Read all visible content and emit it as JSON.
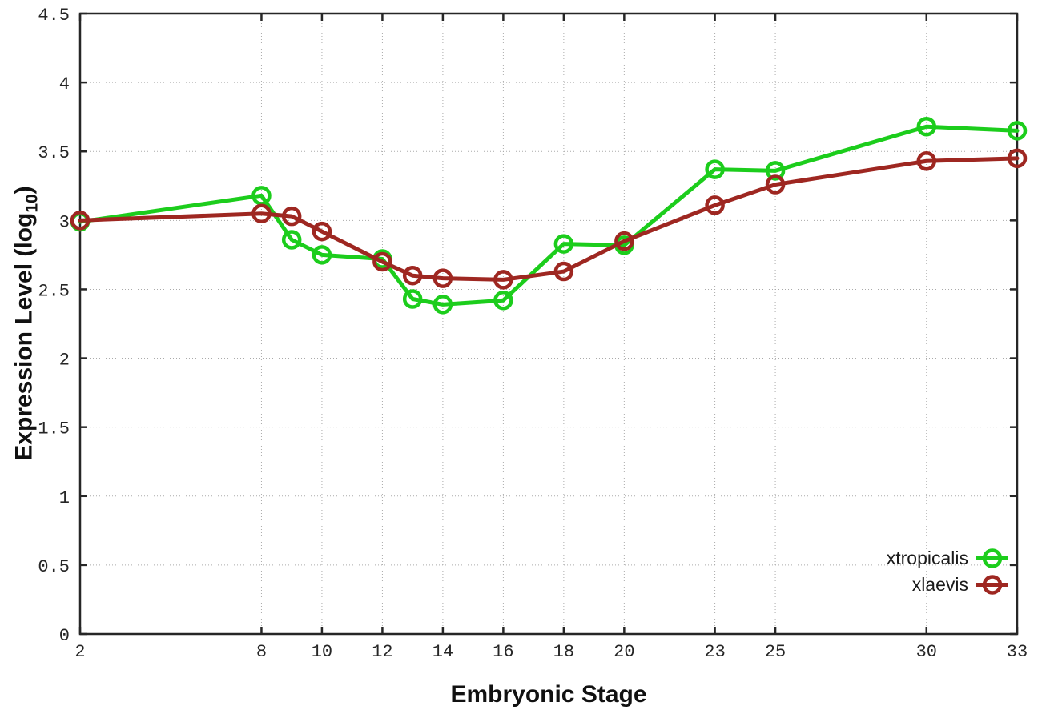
{
  "chart_data": {
    "type": "line",
    "title": "",
    "xlabel": "Embryonic Stage",
    "ylabel": "Expression Level (log10)",
    "ylabel_parts": {
      "main": "Expression Level (log",
      "sub": "10",
      "end": ")"
    },
    "x": [
      2,
      8,
      9,
      10,
      12,
      13,
      14,
      16,
      18,
      20,
      23,
      25,
      30,
      33
    ],
    "x_ticks": [
      2,
      8,
      10,
      12,
      14,
      16,
      18,
      20,
      23,
      25,
      30,
      33
    ],
    "x_tick_labels": [
      "2",
      "8",
      "10",
      "12",
      "14",
      "16",
      "18",
      "20",
      "23",
      "25",
      "30",
      "33"
    ],
    "y_ticks": [
      0,
      0.5,
      1,
      1.5,
      2,
      2.5,
      3,
      3.5,
      4,
      4.5
    ],
    "y_tick_labels": [
      "0",
      "0.5",
      "1",
      "1.5",
      "2",
      "2.5",
      "3",
      "3.5",
      "4",
      "4.5"
    ],
    "xlim": [
      2,
      33
    ],
    "ylim": [
      0,
      4.5
    ],
    "grid": true,
    "legend_position": "bottom-right",
    "marker": "open-circle",
    "series": [
      {
        "name": "xtropicalis",
        "color": "#1ccd1c",
        "values": [
          2.99,
          3.18,
          2.86,
          2.75,
          2.72,
          2.43,
          2.39,
          2.42,
          2.83,
          2.82,
          3.37,
          3.36,
          3.68,
          3.65
        ]
      },
      {
        "name": "xlaevis",
        "color": "#9e2721",
        "values": [
          3.0,
          3.05,
          3.03,
          2.92,
          2.7,
          2.6,
          2.58,
          2.57,
          2.63,
          2.85,
          3.11,
          3.26,
          3.43,
          3.45
        ]
      }
    ],
    "style": {
      "background": "#ffffff",
      "border_color": "#262626",
      "grid_color": "#aaaaaa",
      "tick_label_color": "#262626"
    }
  }
}
